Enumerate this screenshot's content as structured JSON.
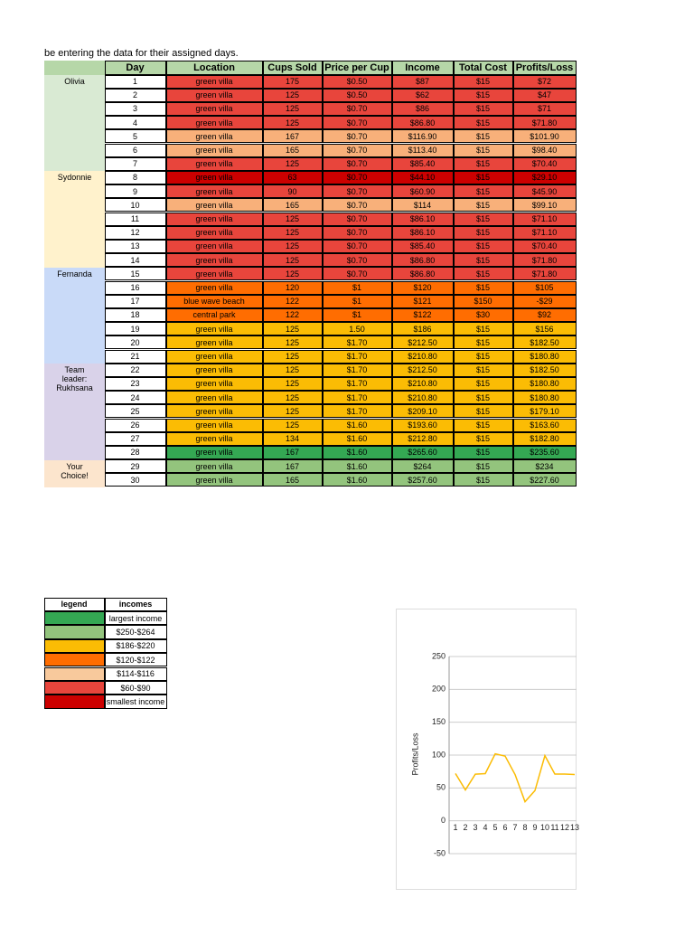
{
  "note_line": "be entering the data for their assigned days.",
  "table": {
    "header_color": "#b6d7a8",
    "header": [
      "",
      "Day",
      "Location",
      "Cups Sold",
      "Price per Cup",
      "Income",
      "Total Cost",
      "Profits/Loss"
    ],
    "groups": [
      {
        "label": "Olivia",
        "color": "#d9ead3",
        "rows": 7
      },
      {
        "label": "Sydonnie",
        "color": "#fff2cc",
        "rows": 7
      },
      {
        "label": "Fernanda",
        "color": "#c9daf8",
        "rows": 7
      },
      {
        "label": "Team leader: Rukhsana",
        "color": "#d9d2e9",
        "rows": 7
      },
      {
        "label": "Your Choice!",
        "color": "#fce5cd",
        "rows": 2
      }
    ],
    "rows": [
      {
        "color": "#e8453c",
        "cells": [
          "1",
          "green villa",
          "175",
          "$0.50",
          "$87",
          "$15",
          "$72"
        ]
      },
      {
        "color": "#e8453c",
        "cells": [
          "2",
          "green villa",
          "125",
          "$0.50",
          "$62",
          "$15",
          "$47"
        ]
      },
      {
        "color": "#e8453c",
        "cells": [
          "3",
          "green villa",
          "125",
          "$0.70",
          "$86",
          "$15",
          "$71"
        ]
      },
      {
        "color": "#e8453c",
        "cells": [
          "4",
          "green villa",
          "125",
          "$0.70",
          "$86.80",
          "$15",
          "$71.80"
        ]
      },
      {
        "color": "#f8b07a",
        "cells": [
          "5",
          "green villa",
          "167",
          "$0.70",
          "$116.90",
          "$15",
          "$101.90"
        ]
      },
      {
        "color": "#f8b07a",
        "cells": [
          "6",
          "green villa",
          "165",
          "$0.70",
          "$113.40",
          "$15",
          "$98.40"
        ]
      },
      {
        "color": "#e8453c",
        "cells": [
          "7",
          "green villa",
          "125",
          "$0.70",
          "$85.40",
          "$15",
          "$70.40"
        ]
      },
      {
        "color": "#cc0000",
        "cells": [
          "8",
          "green villa",
          "63",
          "$0.70",
          "$44.10",
          "$15",
          "$29.10"
        ]
      },
      {
        "color": "#e8453c",
        "cells": [
          "9",
          "green villa",
          "90",
          "$0.70",
          "$60.90",
          "$15",
          "$45.90"
        ]
      },
      {
        "color": "#f8b07a",
        "cells": [
          "10",
          "green villa",
          "165",
          "$0.70",
          "$114",
          "$15",
          "$99.10"
        ]
      },
      {
        "color": "#e8453c",
        "cells": [
          "11",
          "green villa",
          "125",
          "$0.70",
          "$86.10",
          "$15",
          "$71.10"
        ]
      },
      {
        "color": "#e8453c",
        "cells": [
          "12",
          "green villa",
          "125",
          "$0.70",
          "$86.10",
          "$15",
          "$71.10"
        ]
      },
      {
        "color": "#e8453c",
        "cells": [
          "13",
          "green villa",
          "125",
          "$0.70",
          "$85.40",
          "$15",
          "$70.40"
        ]
      },
      {
        "color": "#e8453c",
        "cells": [
          "14",
          "green villa",
          "125",
          "$0.70",
          "$86.80",
          "$15",
          "$71.80"
        ]
      },
      {
        "color": "#e8453c",
        "cells": [
          "15",
          "green villa",
          "125",
          "$0.70",
          "$86.80",
          "$15",
          "$71.80"
        ]
      },
      {
        "color": "#ff6d01",
        "cells": [
          "16",
          "green villa",
          "120",
          "$1",
          "$120",
          "$15",
          "$105"
        ]
      },
      {
        "color": "#ff6d01",
        "cells": [
          "17",
          "blue wave beach",
          "122",
          "$1",
          "$121",
          "$150",
          "-$29"
        ]
      },
      {
        "color": "#ff6d01",
        "cells": [
          "18",
          "central park",
          "122",
          "$1",
          "$122",
          "$30",
          "$92"
        ]
      },
      {
        "color": "#fbbc04",
        "cells": [
          "19",
          "green villa",
          "125",
          "1.50",
          "$186",
          "$15",
          "$156"
        ]
      },
      {
        "color": "#fbbc04",
        "cells": [
          "20",
          "green villa",
          "125",
          "$1.70",
          "$212.50",
          "$15",
          "$182.50"
        ]
      },
      {
        "color": "#fbbc04",
        "cells": [
          "21",
          "green villa",
          "125",
          "$1.70",
          "$210.80",
          "$15",
          "$180.80"
        ]
      },
      {
        "color": "#fbbc04",
        "cells": [
          "22",
          "green villa",
          "125",
          "$1.70",
          "$212.50",
          "$15",
          "$182.50"
        ]
      },
      {
        "color": "#fbbc04",
        "cells": [
          "23",
          "green villa",
          "125",
          "$1.70",
          "$210.80",
          "$15",
          "$180.80"
        ]
      },
      {
        "color": "#fbbc04",
        "cells": [
          "24",
          "green villa",
          "125",
          "$1.70",
          "$210.80",
          "$15",
          "$180.80"
        ]
      },
      {
        "color": "#fbbc04",
        "cells": [
          "25",
          "green villa",
          "125",
          "$1.70",
          "$209.10",
          "$15",
          "$179.10"
        ]
      },
      {
        "color": "#fbbc04",
        "cells": [
          "26",
          "green villa",
          "125",
          "$1.60",
          "$193.60",
          "$15",
          "$163.60"
        ]
      },
      {
        "color": "#fbbc04",
        "cells": [
          "27",
          "green villa",
          "134",
          "$1.60",
          "$212.80",
          "$15",
          "$182.80"
        ]
      },
      {
        "color": "#34a853",
        "cells": [
          "28",
          "green villa",
          "167",
          "$1.60",
          "$265.60",
          "$15",
          "$235.60"
        ]
      },
      {
        "color": "#93c47d",
        "cells": [
          "29",
          "green villa",
          "167",
          "$1.60",
          "$264",
          "$15",
          "$234"
        ]
      },
      {
        "color": "#93c47d",
        "cells": [
          "30",
          "green villa",
          "165",
          "$1.60",
          "$257.60",
          "$15",
          "$227.60"
        ]
      }
    ]
  },
  "legend": {
    "header": [
      "legend",
      "incomes"
    ],
    "rows": [
      {
        "color": "#34a853",
        "label": "largest income"
      },
      {
        "color": "#93c47d",
        "label": "$250-$264"
      },
      {
        "color": "#fbbc04",
        "label": "$186-$220"
      },
      {
        "color": "#ff6d01",
        "label": "$120-$122"
      },
      {
        "color": "#f8c99c",
        "label": "$114-$116"
      },
      {
        "color": "#e8453c",
        "label": "$60-$90"
      },
      {
        "color": "#cc0000",
        "label": "smallest income"
      }
    ]
  },
  "chart_data": {
    "type": "line",
    "y_label": "Profits/Loss",
    "categories": [
      "1",
      "2",
      "3",
      "4",
      "5",
      "6",
      "7",
      "8",
      "9",
      "10",
      "11",
      "12",
      "13"
    ],
    "series": [
      {
        "name": "Profits/Loss",
        "color": "#fbbc04",
        "values": [
          72,
          47,
          71,
          71.8,
          101.9,
          98.4,
          70.4,
          29.1,
          45.9,
          99.1,
          71.1,
          71.1,
          70.4
        ]
      }
    ],
    "ylim": [
      -50,
      250
    ],
    "yticks": [
      -50,
      0,
      50,
      100,
      150,
      200,
      250
    ],
    "grid": true
  }
}
